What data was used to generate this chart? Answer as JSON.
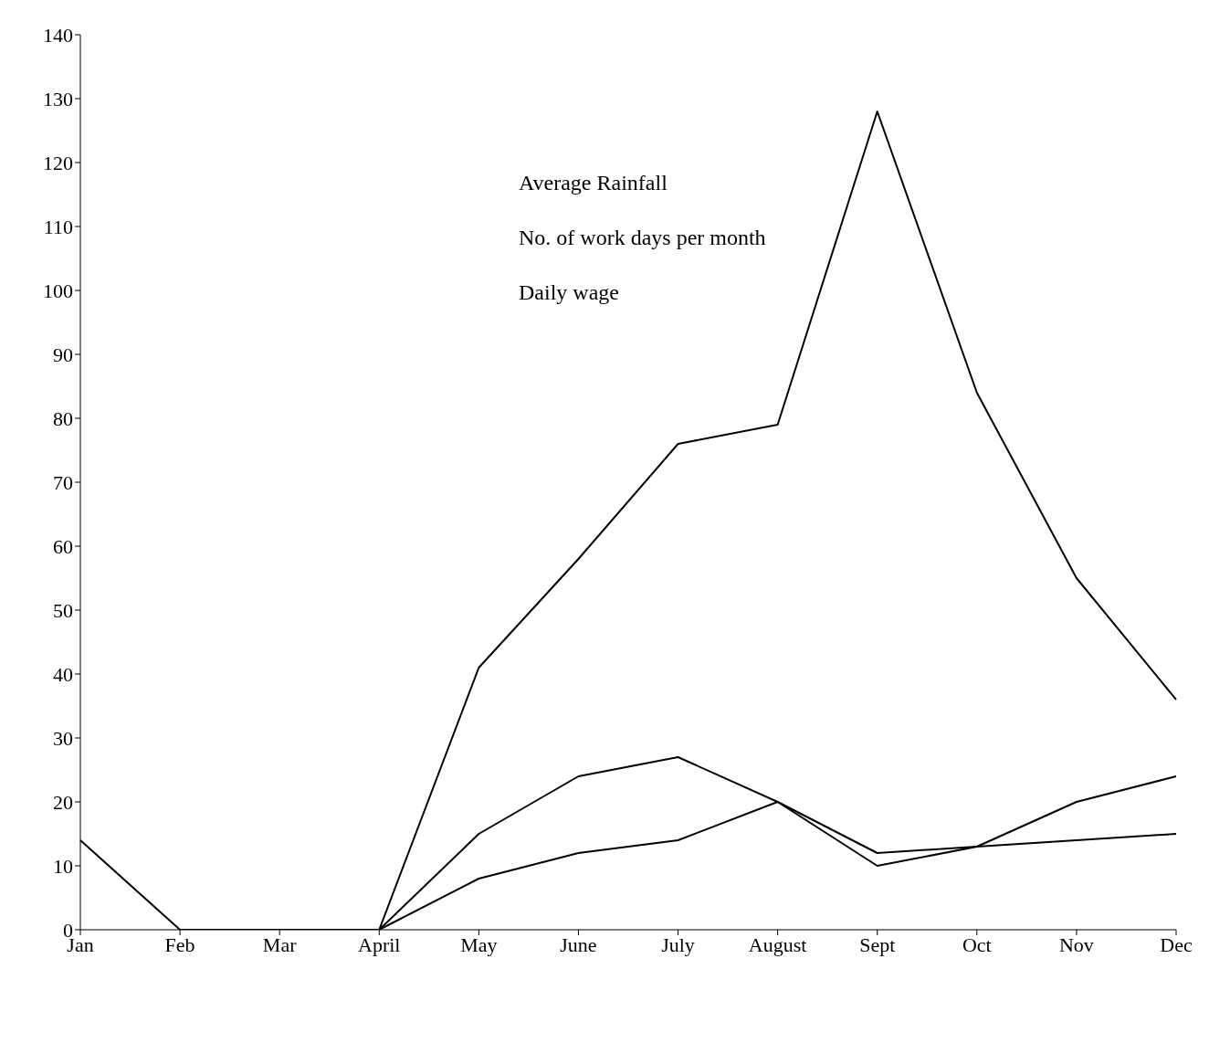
{
  "chart_data": {
    "type": "line",
    "categories": [
      "Jan",
      "Feb",
      "Mar",
      "April",
      "May",
      "June",
      "July",
      "August",
      "Sept",
      "Oct",
      "Nov",
      "Dec"
    ],
    "series": [
      {
        "color": "#000000",
        "values": [
          14,
          0,
          0,
          0,
          41,
          58,
          76,
          79,
          128,
          84,
          55,
          36
        ]
      },
      {
        "color": "#000000",
        "values": [
          null,
          null,
          null,
          0,
          15,
          24,
          27,
          20,
          12,
          13,
          20,
          24
        ]
      },
      {
        "color": "#000000",
        "values": [
          null,
          null,
          null,
          0,
          8,
          12,
          14,
          20,
          10,
          13,
          14,
          15
        ]
      }
    ],
    "ylim": [
      0,
      140
    ],
    "yticks": [
      0,
      10,
      20,
      30,
      40,
      50,
      60,
      70,
      80,
      90,
      100,
      110,
      120,
      130,
      140
    ],
    "annotations": [
      "Average Rainfall",
      "No. of work days per month",
      "Daily wage"
    ],
    "grid": false,
    "legend": false,
    "marker": "none",
    "line_style": "solid"
  }
}
